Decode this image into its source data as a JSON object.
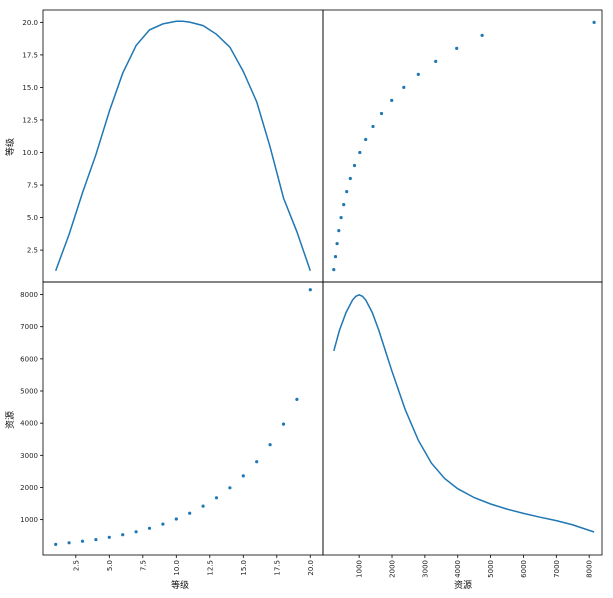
{
  "chart_data": {
    "type": "scatter",
    "layout": "scatter-matrix",
    "variables": [
      "等级",
      "资源"
    ],
    "colors": {
      "series": "#1f77b4",
      "frame": "#000000"
    },
    "xlabels": [
      "等级",
      "资源"
    ],
    "ylabels": [
      "等级",
      "资源"
    ],
    "ticks": {
      "level_x": [
        2.5,
        5.0,
        7.5,
        10.0,
        12.5,
        15.0,
        17.5,
        20.0
      ],
      "level_x_labels": [
        "2.5",
        "5.0",
        "7.5",
        "10.0",
        "12.5",
        "15.0",
        "17.5",
        "20.0"
      ],
      "level_y": [
        2.5,
        5.0,
        7.5,
        10.0,
        12.5,
        15.0,
        17.5,
        20.0
      ],
      "level_y_labels": [
        "2.5",
        "5.0",
        "7.5",
        "10.0",
        "12.5",
        "15.0",
        "17.5",
        "20.0"
      ],
      "resource_x": [
        1000,
        2000,
        3000,
        4000,
        5000,
        6000,
        7000,
        8000
      ],
      "resource_x_labels": [
        "1000",
        "2000",
        "3000",
        "4000",
        "5000",
        "6000",
        "7000",
        "8000"
      ],
      "resource_y": [
        1000,
        2000,
        3000,
        4000,
        5000,
        6000,
        7000,
        8000
      ],
      "resource_y_labels": [
        "1000",
        "2000",
        "3000",
        "4000",
        "5000",
        "6000",
        "7000",
        "8000"
      ]
    },
    "ranges": {
      "level": [
        0.05,
        20.95
      ],
      "resource": [
        -100,
        8390
      ]
    },
    "points": {
      "level": [
        1,
        2,
        3,
        4,
        5,
        6,
        7,
        8,
        9,
        10,
        11,
        12,
        13,
        14,
        15,
        16,
        17,
        18,
        19,
        20
      ],
      "resource": [
        230,
        280,
        330,
        380,
        450,
        530,
        620,
        730,
        860,
        1020,
        1200,
        1420,
        1680,
        1990,
        2360,
        2800,
        3330,
        3970,
        4740,
        8150
      ]
    },
    "density_level": {
      "x": [
        1.0,
        1.5,
        2.0,
        3.0,
        4.0,
        5.0,
        6.0,
        7.0,
        8.0,
        9.0,
        10.0,
        10.5,
        11.0,
        12.0,
        13.0,
        14.0,
        15.0,
        16.0,
        17.0,
        18.0,
        19.0,
        20.0
      ],
      "value": [
        0.08,
        0.29,
        0.5,
        0.98,
        1.42,
        1.92,
        2.36,
        2.68,
        2.86,
        2.93,
        2.96,
        2.96,
        2.95,
        2.91,
        2.81,
        2.66,
        2.38,
        2.03,
        1.51,
        0.92,
        0.53,
        0.08
      ],
      "ylim": [
        -0.05,
        3.09
      ]
    },
    "density_resource": {
      "x": [
        230,
        400,
        600,
        800,
        900,
        1000,
        1100,
        1200,
        1400,
        1600,
        1800,
        2000,
        2400,
        2800,
        3200,
        3600,
        4000,
        4500,
        5000,
        5500,
        6000,
        6500,
        7000,
        7500,
        8150
      ],
      "value": [
        0.8,
        0.88,
        0.95,
        1.0,
        1.014,
        1.02,
        1.014,
        1.0,
        0.95,
        0.88,
        0.8,
        0.72,
        0.57,
        0.45,
        0.36,
        0.3,
        0.26,
        0.225,
        0.2,
        0.18,
        0.163,
        0.148,
        0.135,
        0.118,
        0.09
      ],
      "ylim": [
        0.0,
        1.07
      ]
    }
  }
}
